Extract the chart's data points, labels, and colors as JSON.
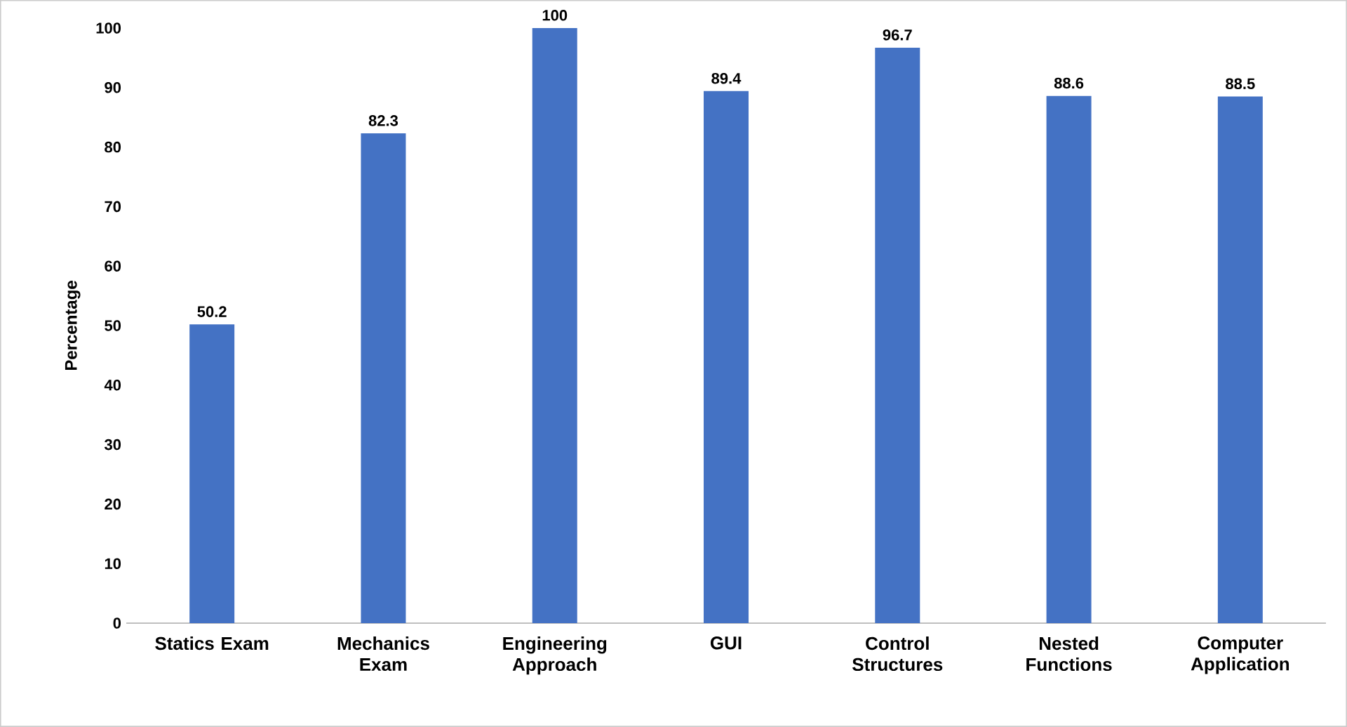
{
  "chart_data": {
    "type": "bar",
    "ylabel": "Percentage",
    "categories": [
      "Statics Exam",
      "Mechanics Exam",
      "Engineering Approach",
      "GUI",
      "Control Structures",
      "Nested Functions",
      "Computer Application"
    ],
    "values": [
      50.2,
      82.3,
      100,
      89.4,
      96.7,
      88.6,
      88.5
    ],
    "color": "#4472c4",
    "ylim": [
      0,
      100
    ],
    "yticks": [
      0,
      10,
      20,
      30,
      40,
      50,
      60,
      70,
      80,
      90,
      100
    ],
    "data_labels": true
  }
}
